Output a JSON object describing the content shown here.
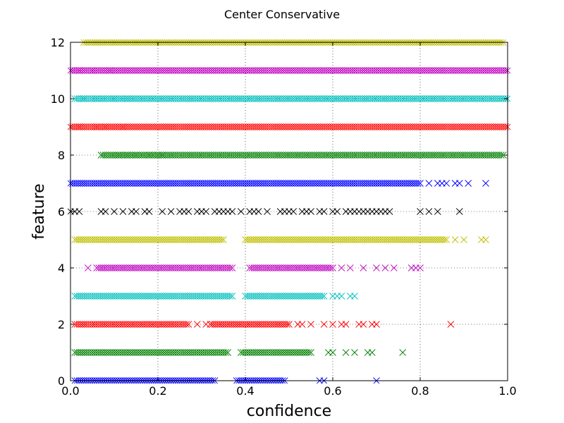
{
  "chart_data": {
    "type": "scatter",
    "title": "Center Conservative",
    "xlabel": "confidence",
    "ylabel": "feature",
    "xlim": [
      0.0,
      1.0
    ],
    "ylim": [
      0,
      12
    ],
    "xticks": [
      "0.0",
      "0.2",
      "0.4",
      "0.6",
      "0.8",
      "1.0"
    ],
    "yticks": [
      "0",
      "2",
      "4",
      "6",
      "8",
      "10",
      "12"
    ],
    "grid": true,
    "marker": "x",
    "series": [
      {
        "y": 0,
        "color": "#0000ff",
        "segments": [
          [
            0.01,
            0.33
          ],
          [
            0.38,
            0.49
          ]
        ],
        "x": [
          0.57,
          0.58,
          0.7
        ]
      },
      {
        "y": 1,
        "color": "#008000",
        "segments": [
          [
            0.01,
            0.36
          ],
          [
            0.39,
            0.55
          ]
        ],
        "x": [
          0.59,
          0.6,
          0.63,
          0.65,
          0.68,
          0.69,
          0.76
        ]
      },
      {
        "y": 2,
        "color": "#ff0000",
        "segments": [
          [
            0.01,
            0.27
          ],
          [
            0.32,
            0.5
          ]
        ],
        "x": [
          0.29,
          0.31,
          0.52,
          0.53,
          0.55,
          0.58,
          0.6,
          0.62,
          0.63,
          0.66,
          0.67,
          0.69,
          0.7,
          0.87
        ]
      },
      {
        "y": 3,
        "color": "#00bfbf",
        "segments": [
          [
            0.01,
            0.37
          ],
          [
            0.4,
            0.58
          ]
        ],
        "x": [
          0.6,
          0.61,
          0.62,
          0.64,
          0.65
        ]
      },
      {
        "y": 4,
        "color": "#bf00bf",
        "segments": [
          [
            0.06,
            0.37
          ],
          [
            0.41,
            0.6
          ]
        ],
        "x": [
          0.04,
          0.62,
          0.64,
          0.67,
          0.7,
          0.72,
          0.74,
          0.78,
          0.79,
          0.8
        ]
      },
      {
        "y": 5,
        "color": "#bfbf00",
        "segments": [
          [
            0.01,
            0.35
          ],
          [
            0.4,
            0.86
          ]
        ],
        "x": [
          0.88,
          0.9,
          0.94,
          0.95
        ]
      },
      {
        "y": 6,
        "color": "#000000",
        "segments": [],
        "x": [
          0.0,
          0.01,
          0.02,
          0.07,
          0.08,
          0.1,
          0.12,
          0.14,
          0.15,
          0.17,
          0.18,
          0.21,
          0.23,
          0.25,
          0.26,
          0.27,
          0.29,
          0.3,
          0.31,
          0.33,
          0.34,
          0.35,
          0.36,
          0.37,
          0.39,
          0.41,
          0.42,
          0.43,
          0.45,
          0.48,
          0.49,
          0.5,
          0.51,
          0.53,
          0.54,
          0.55,
          0.57,
          0.58,
          0.6,
          0.61,
          0.63,
          0.64,
          0.65,
          0.66,
          0.67,
          0.68,
          0.69,
          0.7,
          0.71,
          0.72,
          0.73,
          0.8,
          0.82,
          0.84,
          0.89
        ]
      },
      {
        "y": 7,
        "color": "#0000ff",
        "segments": [
          [
            0.0,
            0.8
          ]
        ],
        "x": [
          0.82,
          0.84,
          0.85,
          0.86,
          0.88,
          0.89,
          0.91,
          0.95
        ]
      },
      {
        "y": 8,
        "color": "#008000",
        "segments": [
          [
            0.07,
            0.99
          ]
        ],
        "x": [
          0.11,
          0.13,
          0.15,
          0.18,
          0.2,
          0.21
        ]
      },
      {
        "y": 9,
        "color": "#ff0000",
        "segments": [
          [
            0.0,
            1.0
          ]
        ],
        "x": [
          0.02,
          0.06,
          0.08,
          0.12
        ]
      },
      {
        "y": 10,
        "color": "#00bfbf",
        "segments": [
          [
            0.01,
            1.0
          ]
        ],
        "x": [
          0.03,
          0.06,
          0.1,
          0.13
        ]
      },
      {
        "y": 11,
        "color": "#bf00bf",
        "segments": [
          [
            0.0,
            1.0
          ]
        ],
        "x": [
          0.02,
          0.05,
          0.09
        ]
      },
      {
        "y": 12,
        "color": "#bfbf00",
        "segments": [
          [
            0.03,
            0.99
          ]
        ],
        "x": [
          0.06,
          0.1,
          0.15,
          0.2
        ]
      }
    ]
  }
}
